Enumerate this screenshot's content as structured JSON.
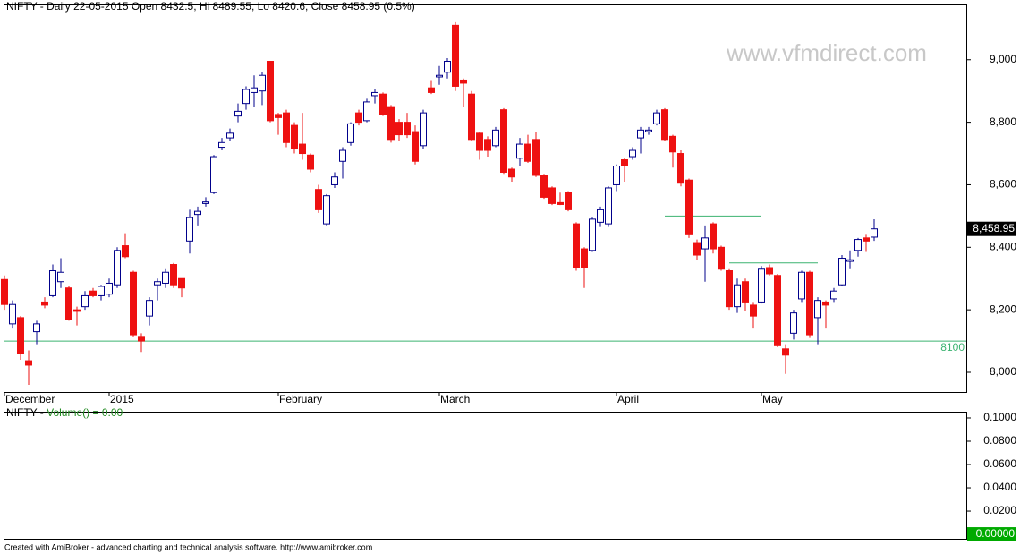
{
  "title": "NIFTY - Daily 22-05-2015 Open 8432.5, Hi 8489.55, Lo 8420.6, Close 8458.95 (0.5%)",
  "watermark": "www.vfmdirect.com",
  "footer": "Created with AmiBroker - advanced charting and technical analysis software. http://www.amibroker.com",
  "chart_data": [
    {
      "type": "candlestick",
      "categories": [
        "December",
        null,
        null,
        null,
        null,
        null,
        null,
        null,
        null,
        null,
        null,
        null,
        null,
        "2015",
        null,
        null,
        null,
        null,
        null,
        null,
        null,
        null,
        null,
        null,
        null,
        null,
        null,
        null,
        null,
        null,
        null,
        null,
        null,
        null,
        "February",
        null,
        null,
        null,
        null,
        null,
        null,
        null,
        null,
        null,
        null,
        null,
        null,
        null,
        null,
        null,
        null,
        null,
        null,
        null,
        "March",
        null,
        null,
        null,
        null,
        null,
        null,
        null,
        null,
        null,
        null,
        null,
        null,
        null,
        null,
        null,
        null,
        null,
        null,
        null,
        null,
        null,
        "April",
        null,
        null,
        null,
        null,
        null,
        null,
        null,
        null,
        null,
        null,
        null,
        null,
        null,
        null,
        null,
        null,
        null,
        "May",
        null,
        null,
        null,
        null,
        null,
        null,
        null,
        null,
        null,
        null,
        null,
        null,
        null,
        null
      ],
      "open": [
        8297,
        8155,
        8175,
        8037,
        8130,
        8225,
        8245,
        8290,
        8270,
        8200,
        8210,
        8260,
        8245,
        8250,
        8280,
        8405,
        8320,
        8115,
        8180,
        8280,
        8285,
        8345,
        8300,
        8420,
        8505,
        8540,
        8575,
        8720,
        8750,
        8820,
        8860,
        8895,
        8900,
        8995,
        8825,
        8830,
        8790,
        8730,
        8695,
        8585,
        8475,
        8600,
        8675,
        8735,
        8830,
        8805,
        8885,
        8890,
        8850,
        8800,
        8800,
        8770,
        8725,
        8910,
        8945,
        8960,
        9110,
        8935,
        8890,
        8765,
        8745,
        8725,
        8840,
        8650,
        8685,
        8730,
        8745,
        8630,
        8590,
        8543,
        8575,
        8475,
        8395,
        8390,
        8480,
        8475,
        8600,
        8680,
        8690,
        8750,
        8770,
        8795,
        8840,
        8755,
        8700,
        8615,
        8415,
        8395,
        8475,
        8400,
        8325,
        8210,
        8290,
        8215,
        8225,
        8335,
        8310,
        8075,
        8125,
        8235,
        8320,
        8175,
        8225,
        8235,
        8280,
        8355,
        8390,
        8430,
        8432.5
      ],
      "high": [
        8310,
        8230,
        8180,
        8070,
        8165,
        8240,
        8345,
        8365,
        8275,
        8210,
        8260,
        8270,
        8280,
        8300,
        8400,
        8445,
        8325,
        8125,
        8240,
        8300,
        8330,
        8350,
        8300,
        8520,
        8530,
        8560,
        8695,
        8750,
        8780,
        8860,
        8915,
        8950,
        8960,
        8995,
        8830,
        8840,
        8800,
        8830,
        8700,
        8600,
        8570,
        8640,
        8720,
        8800,
        8840,
        8875,
        8905,
        8895,
        8855,
        8810,
        8830,
        8790,
        8840,
        8935,
        8980,
        9005,
        9120,
        8940,
        8900,
        8770,
        8755,
        8785,
        8845,
        8655,
        8750,
        8760,
        8770,
        8635,
        8595,
        8575,
        8580,
        8480,
        8400,
        8495,
        8530,
        8595,
        8665,
        8685,
        8720,
        8785,
        8785,
        8840,
        8845,
        8760,
        8710,
        8620,
        8425,
        8470,
        8480,
        8405,
        8330,
        8300,
        8300,
        8225,
        8340,
        8345,
        8315,
        8090,
        8200,
        8325,
        8325,
        8240,
        8230,
        8270,
        8375,
        8390,
        8430,
        8440,
        8489.55
      ],
      "low": [
        8200,
        8140,
        8040,
        7960,
        8090,
        8205,
        8240,
        8270,
        8165,
        8150,
        8200,
        8240,
        8230,
        8240,
        8270,
        8365,
        8115,
        8065,
        8150,
        8230,
        8270,
        8270,
        8240,
        8380,
        8470,
        8530,
        8570,
        8710,
        8740,
        8800,
        8840,
        8850,
        8855,
        8800,
        8760,
        8720,
        8700,
        8680,
        8640,
        8510,
        8470,
        8590,
        8620,
        8725,
        8790,
        8800,
        8860,
        8820,
        8735,
        8740,
        8750,
        8665,
        8715,
        8890,
        8920,
        8940,
        8900,
        8850,
        8740,
        8680,
        8690,
        8720,
        8635,
        8610,
        8660,
        8670,
        8625,
        8555,
        8535,
        8535,
        8515,
        8325,
        8270,
        8385,
        8465,
        8465,
        8580,
        8610,
        8680,
        8700,
        8760,
        8790,
        8740,
        8655,
        8595,
        8430,
        8360,
        8290,
        8380,
        8325,
        8200,
        8190,
        8195,
        8140,
        8220,
        8310,
        8080,
        7995,
        8105,
        8225,
        8110,
        8090,
        8140,
        8225,
        8275,
        8330,
        8370,
        8385,
        8420.6
      ],
      "close": [
        8217,
        8217,
        8060,
        8023,
        8155,
        8215,
        8325,
        8320,
        8170,
        8195,
        8245,
        8245,
        8275,
        8285,
        8390,
        8370,
        8120,
        8100,
        8230,
        8290,
        8320,
        8280,
        8270,
        8495,
        8515,
        8545,
        8690,
        8735,
        8765,
        8835,
        8905,
        8910,
        8950,
        8805,
        8815,
        8735,
        8715,
        8700,
        8650,
        8520,
        8565,
        8625,
        8710,
        8795,
        8800,
        8865,
        8895,
        8825,
        8745,
        8760,
        8760,
        8675,
        8830,
        8895,
        8950,
        8995,
        8915,
        8925,
        8745,
        8710,
        8710,
        8775,
        8640,
        8625,
        8730,
        8675,
        8630,
        8560,
        8540,
        8537,
        8520,
        8335,
        8335,
        8490,
        8520,
        8590,
        8660,
        8660,
        8710,
        8775,
        8775,
        8830,
        8745,
        8705,
        8605,
        8440,
        8375,
        8430,
        8395,
        8330,
        8210,
        8280,
        8225,
        8180,
        8330,
        8315,
        8085,
        8055,
        8190,
        8320,
        8120,
        8230,
        8215,
        8260,
        8365,
        8360,
        8425,
        8420,
        8458.95
      ],
      "up_color": "#00008b",
      "down_color": "#ee1111",
      "ylim": [
        7937,
        9174
      ],
      "yticks": [
        {
          "value": 8000,
          "label": "8,000"
        },
        {
          "value": 8200,
          "label": "8,200"
        },
        {
          "value": 8400,
          "label": "8,400"
        },
        {
          "value": 8600,
          "label": "8,600"
        },
        {
          "value": 8800,
          "label": "8,800"
        },
        {
          "value": 9000,
          "label": "9,000"
        }
      ],
      "last_price": {
        "value": 8458.95,
        "label": "8,458.95"
      },
      "hlines": [
        {
          "value": 8100,
          "label": "8100",
          "color": "#3cb371"
        }
      ],
      "segments": [
        {
          "value": 8500,
          "start": 82,
          "end": 94,
          "color": "#3cb371"
        },
        {
          "value": 8350,
          "start": 90,
          "end": 101,
          "color": "#3cb371"
        }
      ]
    },
    {
      "type": "volume",
      "symbol": "NIFTY -",
      "title": "Volume() = 0.00",
      "ylim": [
        -0.0038,
        0.1046
      ],
      "yticks": [
        {
          "value": 0.02,
          "label": "0.0200"
        },
        {
          "value": 0.04,
          "label": "0.0400"
        },
        {
          "value": 0.06,
          "label": "0.0600"
        },
        {
          "value": 0.08,
          "label": "0.0800"
        },
        {
          "value": 0.1,
          "label": "0.1000"
        }
      ],
      "last_value": {
        "value": 0,
        "label": "0.00000"
      }
    }
  ]
}
